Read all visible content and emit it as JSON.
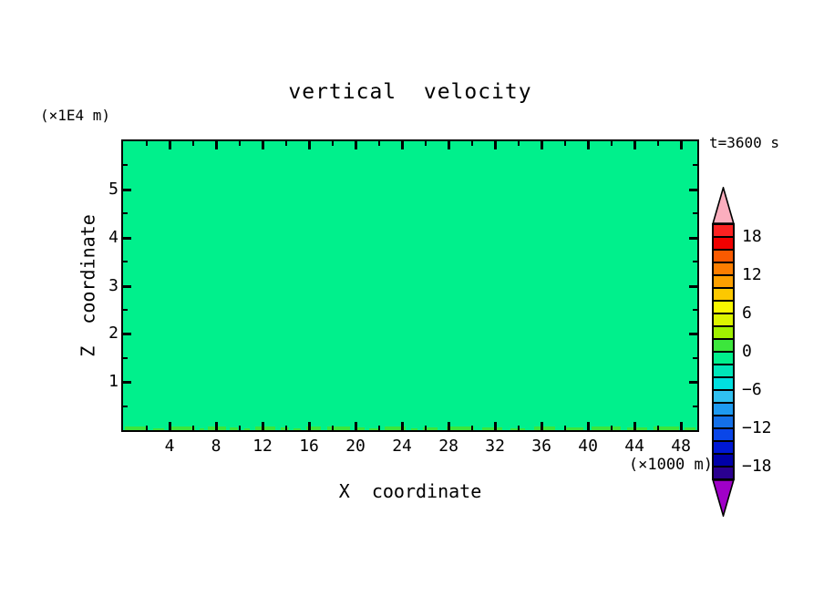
{
  "chart_data": {
    "type": "heatmap",
    "title": "vertical  velocity",
    "time_label": "t=3600 s",
    "x_axis": {
      "label": "X  coordinate",
      "unit": "(×1000 m)",
      "range": [
        0,
        49.4
      ],
      "major_tick_values": [
        4,
        8,
        12,
        16,
        20,
        24,
        28,
        32,
        36,
        40,
        44,
        48
      ],
      "major_tick_labels": [
        "4",
        "8",
        "12",
        "16",
        "20",
        "24",
        "28",
        "32",
        "36",
        "40",
        "44",
        "48"
      ],
      "minor_tick_step": 2
    },
    "z_axis": {
      "label": "Z  coordinate",
      "unit": "(×1E4 m)",
      "range": [
        0,
        6
      ],
      "major_tick_values": [
        1,
        2,
        3,
        4,
        5
      ],
      "major_tick_labels": [
        "1",
        "2",
        "3",
        "4",
        "5"
      ],
      "minor_tick_step": 0.5
    },
    "field": {
      "description": "vertical velocity field is nearly uniform in the 0 bin",
      "uniform_bin": "-2 to 0",
      "uniform_color": "#00F08C",
      "surface_patch_bin": "0 to 2",
      "surface_patch_color": "#3CE63C",
      "surface_patches": [
        {
          "x": 0.15,
          "w": 2.0,
          "h": 4
        },
        {
          "x": 2.6,
          "w": 0.9,
          "h": 2
        },
        {
          "x": 4.0,
          "w": 2.2,
          "h": 4
        },
        {
          "x": 6.6,
          "w": 0.4,
          "h": 2
        },
        {
          "x": 7.3,
          "w": 1.6,
          "h": 4
        },
        {
          "x": 9.2,
          "w": 0.7,
          "h": 3
        },
        {
          "x": 10.4,
          "w": 0.5,
          "h": 2
        },
        {
          "x": 11.4,
          "w": 1.7,
          "h": 4
        },
        {
          "x": 13.6,
          "w": 0.7,
          "h": 3
        },
        {
          "x": 14.7,
          "w": 0.6,
          "h": 2
        },
        {
          "x": 15.8,
          "w": 1.25,
          "h": 4
        },
        {
          "x": 17.6,
          "w": 1.9,
          "h": 4
        },
        {
          "x": 20.0,
          "w": 0.8,
          "h": 3
        },
        {
          "x": 21.2,
          "w": 0.9,
          "h": 2
        },
        {
          "x": 22.5,
          "w": 1.8,
          "h": 4
        },
        {
          "x": 24.8,
          "w": 0.55,
          "h": 2
        },
        {
          "x": 25.8,
          "w": 1.25,
          "h": 3
        },
        {
          "x": 27.8,
          "w": 2.4,
          "h": 4
        },
        {
          "x": 30.9,
          "w": 1.7,
          "h": 3
        },
        {
          "x": 33.3,
          "w": 1.25,
          "h": 2
        },
        {
          "x": 35.4,
          "w": 1.8,
          "h": 4
        },
        {
          "x": 38.0,
          "w": 1.6,
          "h": 3
        },
        {
          "x": 40.3,
          "w": 2.5,
          "h": 4
        },
        {
          "x": 43.4,
          "w": 1.7,
          "h": 3
        },
        {
          "x": 45.6,
          "w": 2.2,
          "h": 4
        },
        {
          "x": 48.3,
          "w": 0.95,
          "h": 3
        }
      ]
    },
    "colorbar": {
      "tick_labels": [
        {
          "value": 18,
          "text": "18"
        },
        {
          "value": 12,
          "text": "12"
        },
        {
          "value": 6,
          "text": "6"
        },
        {
          "value": 0,
          "text": "0"
        },
        {
          "value": -6,
          "text": "−6"
        },
        {
          "value": -12,
          "text": "−12"
        },
        {
          "value": -18,
          "text": "−18"
        }
      ],
      "segments": [
        {
          "lo": 18,
          "hi": 20,
          "color": "#FB2222"
        },
        {
          "lo": 16,
          "hi": 18,
          "color": "#F00000"
        },
        {
          "lo": 14,
          "hi": 16,
          "color": "#FA5A00"
        },
        {
          "lo": 12,
          "hi": 14,
          "color": "#FC7E00"
        },
        {
          "lo": 10,
          "hi": 12,
          "color": "#FCA000"
        },
        {
          "lo": 8,
          "hi": 10,
          "color": "#FCC800"
        },
        {
          "lo": 6,
          "hi": 8,
          "color": "#F8F800"
        },
        {
          "lo": 4,
          "hi": 6,
          "color": "#DCF400"
        },
        {
          "lo": 2,
          "hi": 4,
          "color": "#A0F000"
        },
        {
          "lo": 0,
          "hi": 2,
          "color": "#3CE63C"
        },
        {
          "lo": -2,
          "hi": 0,
          "color": "#00F08C"
        },
        {
          "lo": -4,
          "hi": -2,
          "color": "#00E6B9"
        },
        {
          "lo": -6,
          "hi": -4,
          "color": "#00E0E0"
        },
        {
          "lo": -8,
          "hi": -6,
          "color": "#30C0F0"
        },
        {
          "lo": -10,
          "hi": -8,
          "color": "#1E9AF0"
        },
        {
          "lo": -12,
          "hi": -10,
          "color": "#1470E8"
        },
        {
          "lo": -14,
          "hi": -12,
          "color": "#0A46E8"
        },
        {
          "lo": -16,
          "hi": -14,
          "color": "#0018D4"
        },
        {
          "lo": -18,
          "hi": -16,
          "color": "#0000A8"
        },
        {
          "lo": -20,
          "hi": -18,
          "color": "#2A0090"
        }
      ],
      "over_arrow_color": "#FBAEBE",
      "under_arrow_color": "#A000C8"
    }
  }
}
